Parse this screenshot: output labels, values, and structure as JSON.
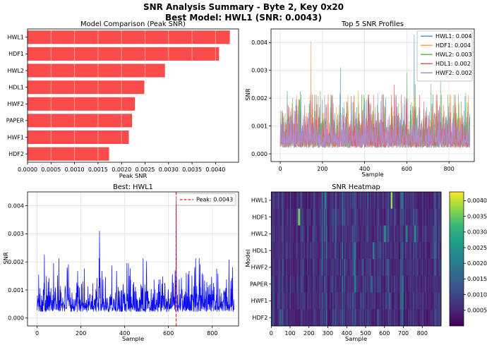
{
  "figure": {
    "title_line1": "SNR Analysis Summary - Byte 2, Key 0x20",
    "title_line2": "Best Model: HWL1 (SNR: 0.0043)",
    "background": "#ffffff"
  },
  "chart_data": [
    {
      "type": "bar",
      "orientation": "horizontal",
      "title": "Model Comparison (Peak SNR)",
      "xlabel": "Peak SNR",
      "categories": [
        "HWL1",
        "HDF1",
        "HWL2",
        "HDL1",
        "HWF2",
        "PAPER",
        "HWF1",
        "HDF2"
      ],
      "values": [
        0.0043,
        0.00407,
        0.00292,
        0.00248,
        0.00228,
        0.00222,
        0.00215,
        0.00173
      ],
      "xlim": [
        0,
        0.00449
      ],
      "xticks": [
        0,
        0.0005,
        0.001,
        0.0015,
        0.002,
        0.0025,
        0.003,
        0.0035,
        0.004
      ],
      "xtick_decimals": 4,
      "bar_color": "#fb4b4b",
      "bar_edge": "#ee4040",
      "grid": true
    },
    {
      "type": "line",
      "title": "Top 5 SNR Profiles",
      "xlabel": "Sample",
      "ylabel": "SNR",
      "xlim": [
        -44,
        920
      ],
      "ylim": [
        -0.00028,
        0.00449
      ],
      "xticks": [
        0,
        200,
        400,
        600,
        800
      ],
      "yticks": [
        0,
        0.001,
        0.002,
        0.003,
        0.004
      ],
      "ytick_decimals": 3,
      "grid": true,
      "legend_position": "upper right",
      "noise": {
        "points": 900,
        "base": 0.00022,
        "scale": 0.0004,
        "clamp": 0.0019
      },
      "series": [
        {
          "name": "HWL1",
          "legend": "HWL1: 0.004",
          "peak_snr": 0.004,
          "color": "#5799c7",
          "seed": 101,
          "peaks": [
            [
              33,
              0.00225
            ],
            [
              75,
              0.00195
            ],
            [
              285,
              0.0031
            ],
            [
              410,
              0.00195
            ],
            [
              500,
              0.00202
            ],
            [
              635,
              0.00428
            ],
            [
              720,
              0.0018
            ],
            [
              893,
              0.0018
            ]
          ]
        },
        {
          "name": "HDF1",
          "legend": "HDF1: 0.004",
          "peak_snr": 0.004,
          "color": "#ff9f4a",
          "seed": 202,
          "peaks": [
            [
              145,
              0.00405
            ],
            [
              190,
              0.00183
            ],
            [
              370,
              0.00225
            ],
            [
              820,
              0.0016
            ]
          ]
        },
        {
          "name": "HWL2",
          "legend": "HWL2: 0.003",
          "peak_snr": 0.003,
          "color": "#61b861",
          "seed": 303,
          "peaks": [
            [
              95,
              0.00225
            ],
            [
              190,
              0.00225
            ],
            [
              240,
              0.0021
            ],
            [
              400,
              0.002
            ],
            [
              600,
              0.00292
            ],
            [
              640,
              0.0025
            ],
            [
              715,
              0.00252
            ],
            [
              760,
              0.00273
            ],
            [
              825,
              0.00212
            ],
            [
              880,
              0.0022
            ]
          ]
        },
        {
          "name": "HDL1",
          "legend": "HDL1: 0.002",
          "peak_snr": 0.002,
          "color": "#e05d5e",
          "seed": 404,
          "peaks": [
            [
              350,
              0.0021
            ],
            [
              540,
              0.00248
            ],
            [
              600,
              0.0019
            ],
            [
              680,
              0.00188
            ]
          ]
        },
        {
          "name": "HWF2",
          "legend": "HWF2: 0.002",
          "peak_snr": 0.002,
          "color": "#af8dce",
          "seed": 505,
          "peaks": [
            [
              190,
              0.002
            ],
            [
              462,
              0.00218
            ],
            [
              545,
              0.002
            ],
            [
              590,
              0.00205
            ]
          ]
        }
      ]
    },
    {
      "type": "line",
      "title": "Best: HWL1",
      "xlabel": "Sample",
      "ylabel": "SNR",
      "xlim": [
        -44,
        920
      ],
      "ylim": [
        -0.00028,
        0.00449
      ],
      "xticks": [
        0,
        200,
        400,
        600,
        800
      ],
      "yticks": [
        0,
        0.001,
        0.002,
        0.003,
        0.004
      ],
      "ytick_decimals": 3,
      "grid": true,
      "noise": {
        "points": 900,
        "base": 0.00022,
        "scale": 0.0004,
        "clamp": 0.0019
      },
      "series": [
        {
          "name": "HWL1",
          "color": "#0b0bf2",
          "width": 0.75,
          "seed": 101,
          "peaks": [
            [
              33,
              0.00225
            ],
            [
              75,
              0.00195
            ],
            [
              285,
              0.0031
            ],
            [
              410,
              0.00195
            ],
            [
              500,
              0.00202
            ],
            [
              635,
              0.00428
            ],
            [
              720,
              0.0018
            ],
            [
              893,
              0.0018
            ]
          ]
        }
      ],
      "vline": {
        "x": 635,
        "value": 0.0043,
        "color": "#ff2020",
        "style": "dashed",
        "label": "Peak: 0.0043"
      }
    },
    {
      "type": "heatmap",
      "title": "SNR Heatmap",
      "xlabel": "Sample",
      "ylabel": "Model",
      "rows": [
        "HWL1",
        "HDF1",
        "HWL2",
        "HDL1",
        "HWF2",
        "PAPER",
        "HWF1",
        "HDF2"
      ],
      "xticks": [
        0,
        100,
        200,
        300,
        400,
        500,
        600,
        700,
        800
      ],
      "samples": 900,
      "columns": 180,
      "colormap": "viridis",
      "vmin": 0,
      "vmax": 0.00428,
      "colorbar_ticks": [
        0.0005,
        0.001,
        0.0015,
        0.002,
        0.0025,
        0.003,
        0.0035,
        0.004
      ],
      "colorbar_decimals": 4,
      "noise": {
        "col_base": 0.00035,
        "col_scale": 0.00038,
        "col_clamp": 0.00145,
        "col_seed": 42,
        "row_seeds": [
          101,
          202,
          303,
          404,
          505,
          606,
          707,
          808
        ]
      },
      "hotspots": [
        [
          0,
          635,
          0.0043
        ],
        [
          0,
          285,
          0.0026
        ],
        [
          1,
          145,
          0.0041
        ],
        [
          2,
          600,
          0.0029
        ],
        [
          2,
          760,
          0.0027
        ],
        [
          2,
          715,
          0.0025
        ],
        [
          3,
          540,
          0.0024
        ],
        [
          5,
          530,
          0.00195
        ],
        [
          6,
          625,
          0.0019
        ],
        [
          7,
          45,
          0.0017
        ]
      ]
    }
  ]
}
